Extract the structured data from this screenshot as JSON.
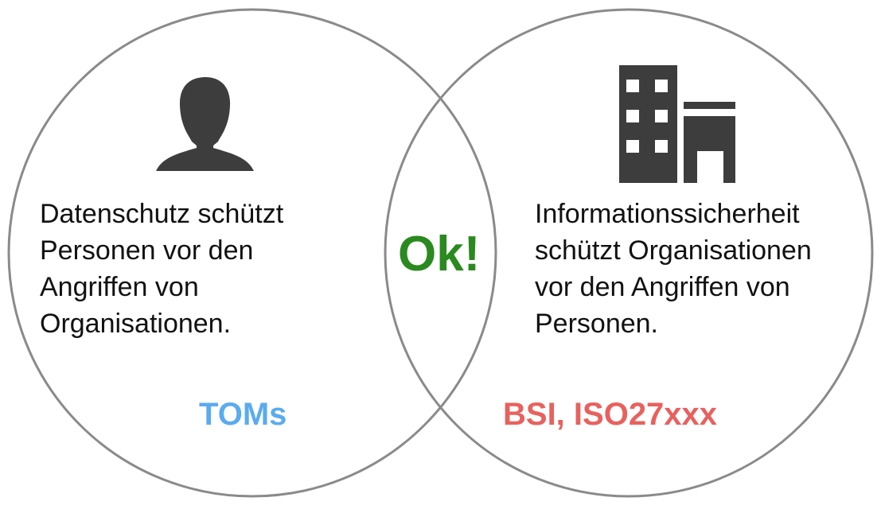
{
  "left": {
    "lines": [
      "Datenschutz schützt",
      "Personen vor den",
      "Angriffen von",
      "Organisationen."
    ],
    "tag": "TOMs",
    "icon": "person-icon"
  },
  "right": {
    "lines": [
      "Informationssicherheit",
      "schützt Organisationen",
      "vor den Angriffen von",
      "Personen."
    ],
    "tag": "BSI, ISO27xxx",
    "icon": "building-icon"
  },
  "center": {
    "label": "Ok!"
  },
  "colors": {
    "circle_stroke": "#8a8a8a",
    "icon_fill": "#3d3d3d",
    "text": "#111111",
    "left_tag": "#5aabf0",
    "right_tag": "#e8615e",
    "center": "#2a8a1f"
  }
}
